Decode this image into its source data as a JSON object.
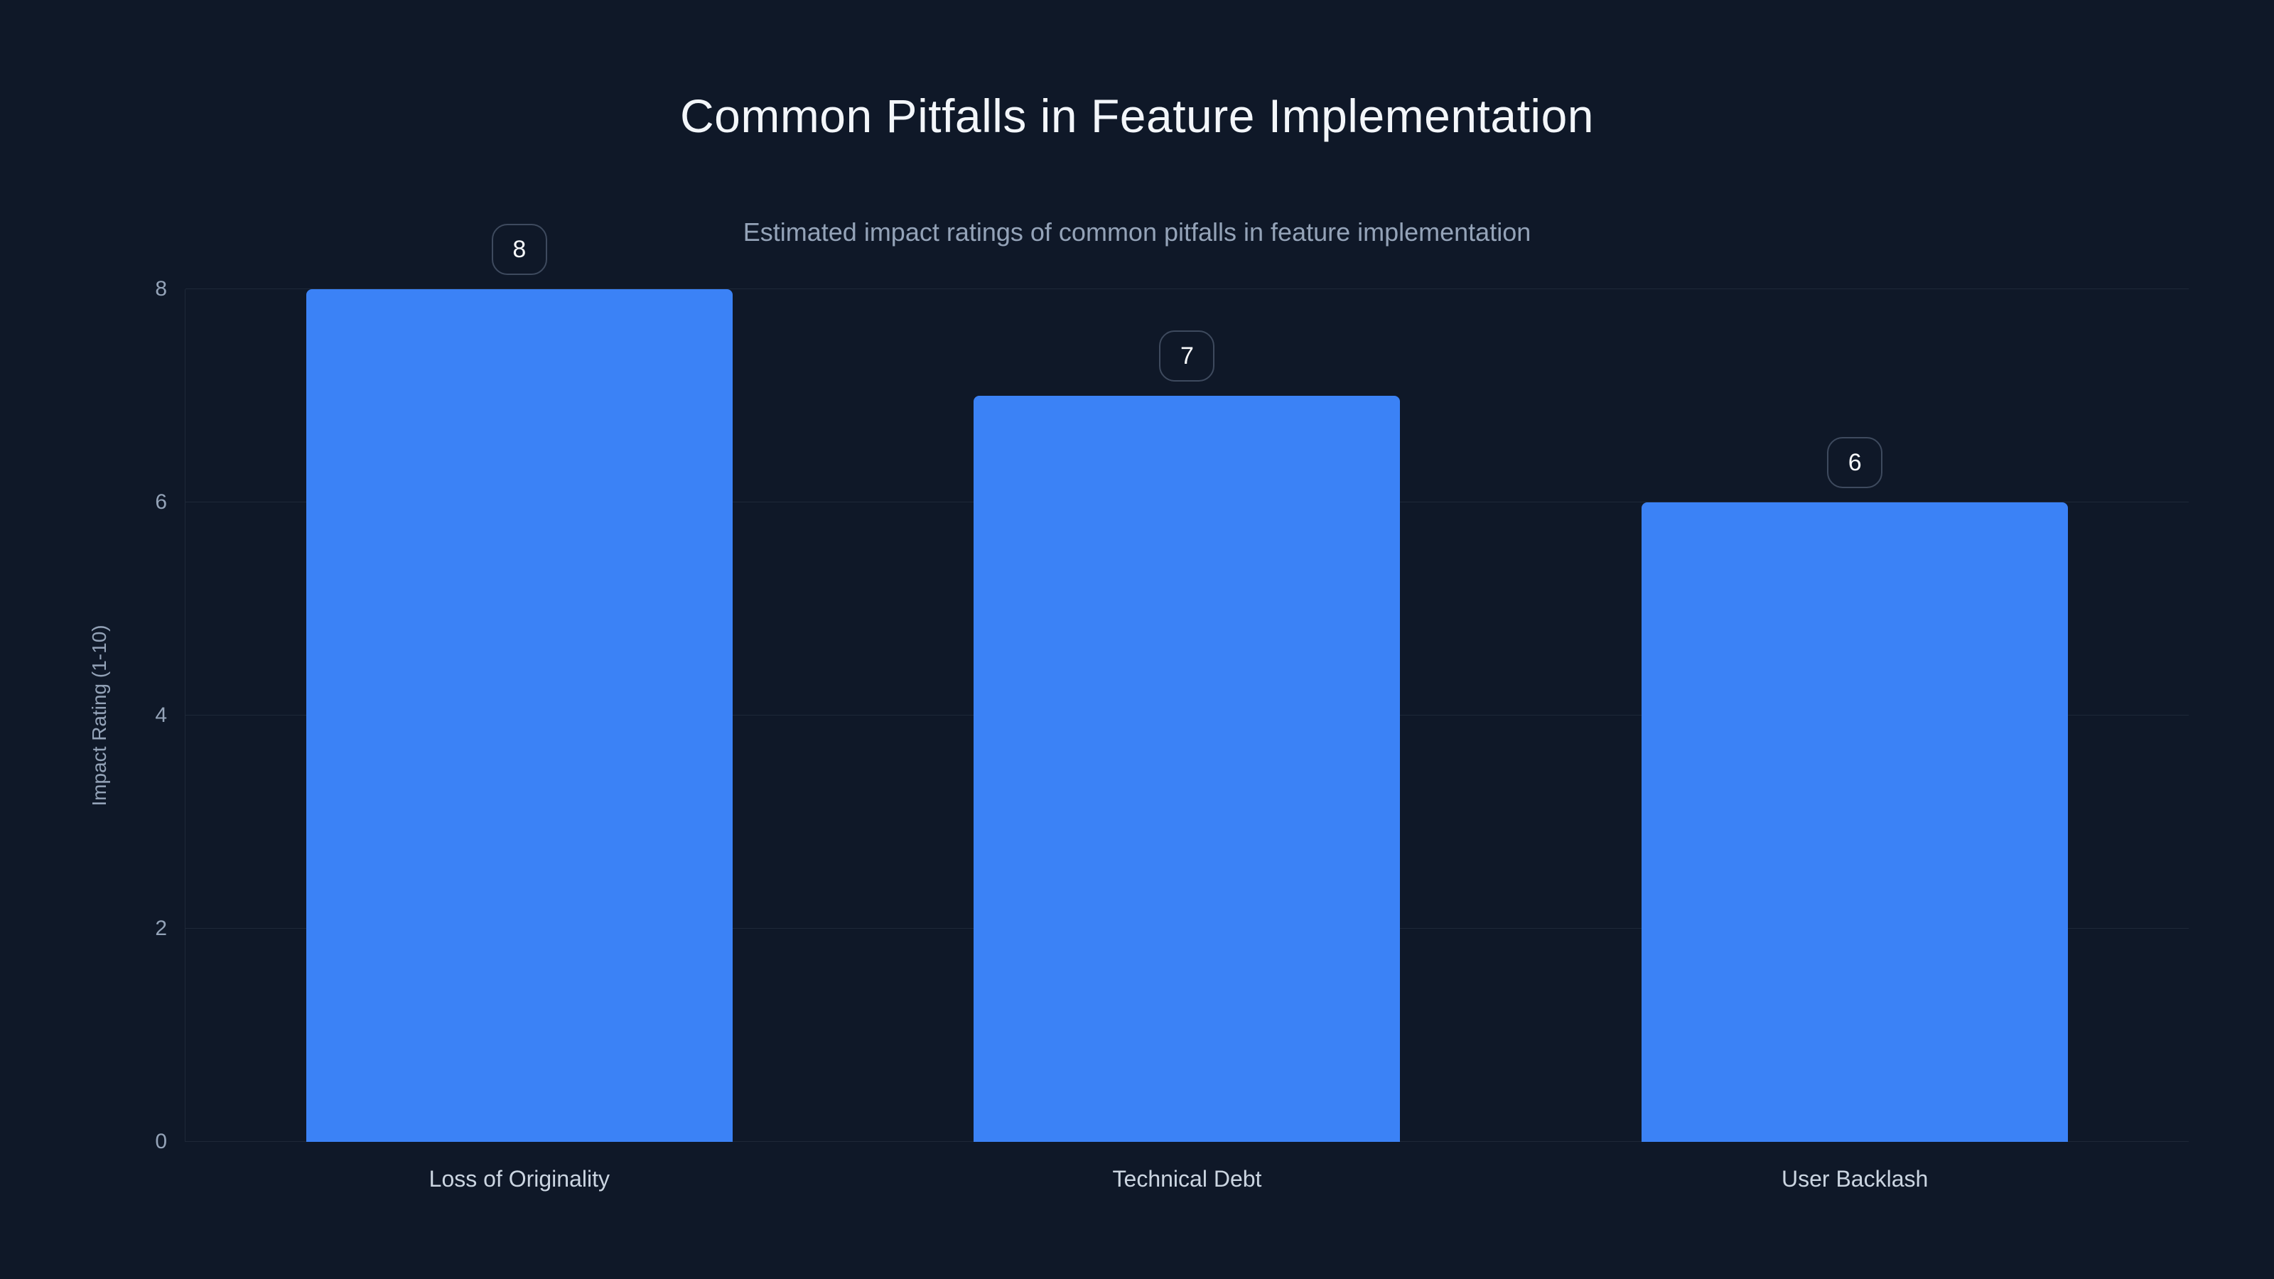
{
  "chart_data": {
    "type": "bar",
    "title": "Common Pitfalls in Feature Implementation",
    "subtitle": "Estimated impact ratings of common pitfalls in feature implementation",
    "categories": [
      "Loss of Originality",
      "Technical Debt",
      "User Backlash"
    ],
    "values": [
      8,
      7,
      6
    ],
    "value_labels": [
      "8",
      "7",
      "6"
    ],
    "xlabel": "",
    "ylabel": "Impact Rating (1-10)",
    "ylim": [
      0,
      8
    ],
    "yticks": [
      0,
      2,
      4,
      6,
      8
    ],
    "grid": true,
    "legend": false
  },
  "colors": {
    "background": "#0f1828",
    "grid": "#1e2838",
    "tick_label": "#94a3b8",
    "category_label": "#cbd5e1",
    "title": "#f3f6fa",
    "subtitle": "#94a3b8",
    "bar": "#3b82f6",
    "badge_border": "#3e4a5e",
    "badge_text": "#f8fafc"
  }
}
